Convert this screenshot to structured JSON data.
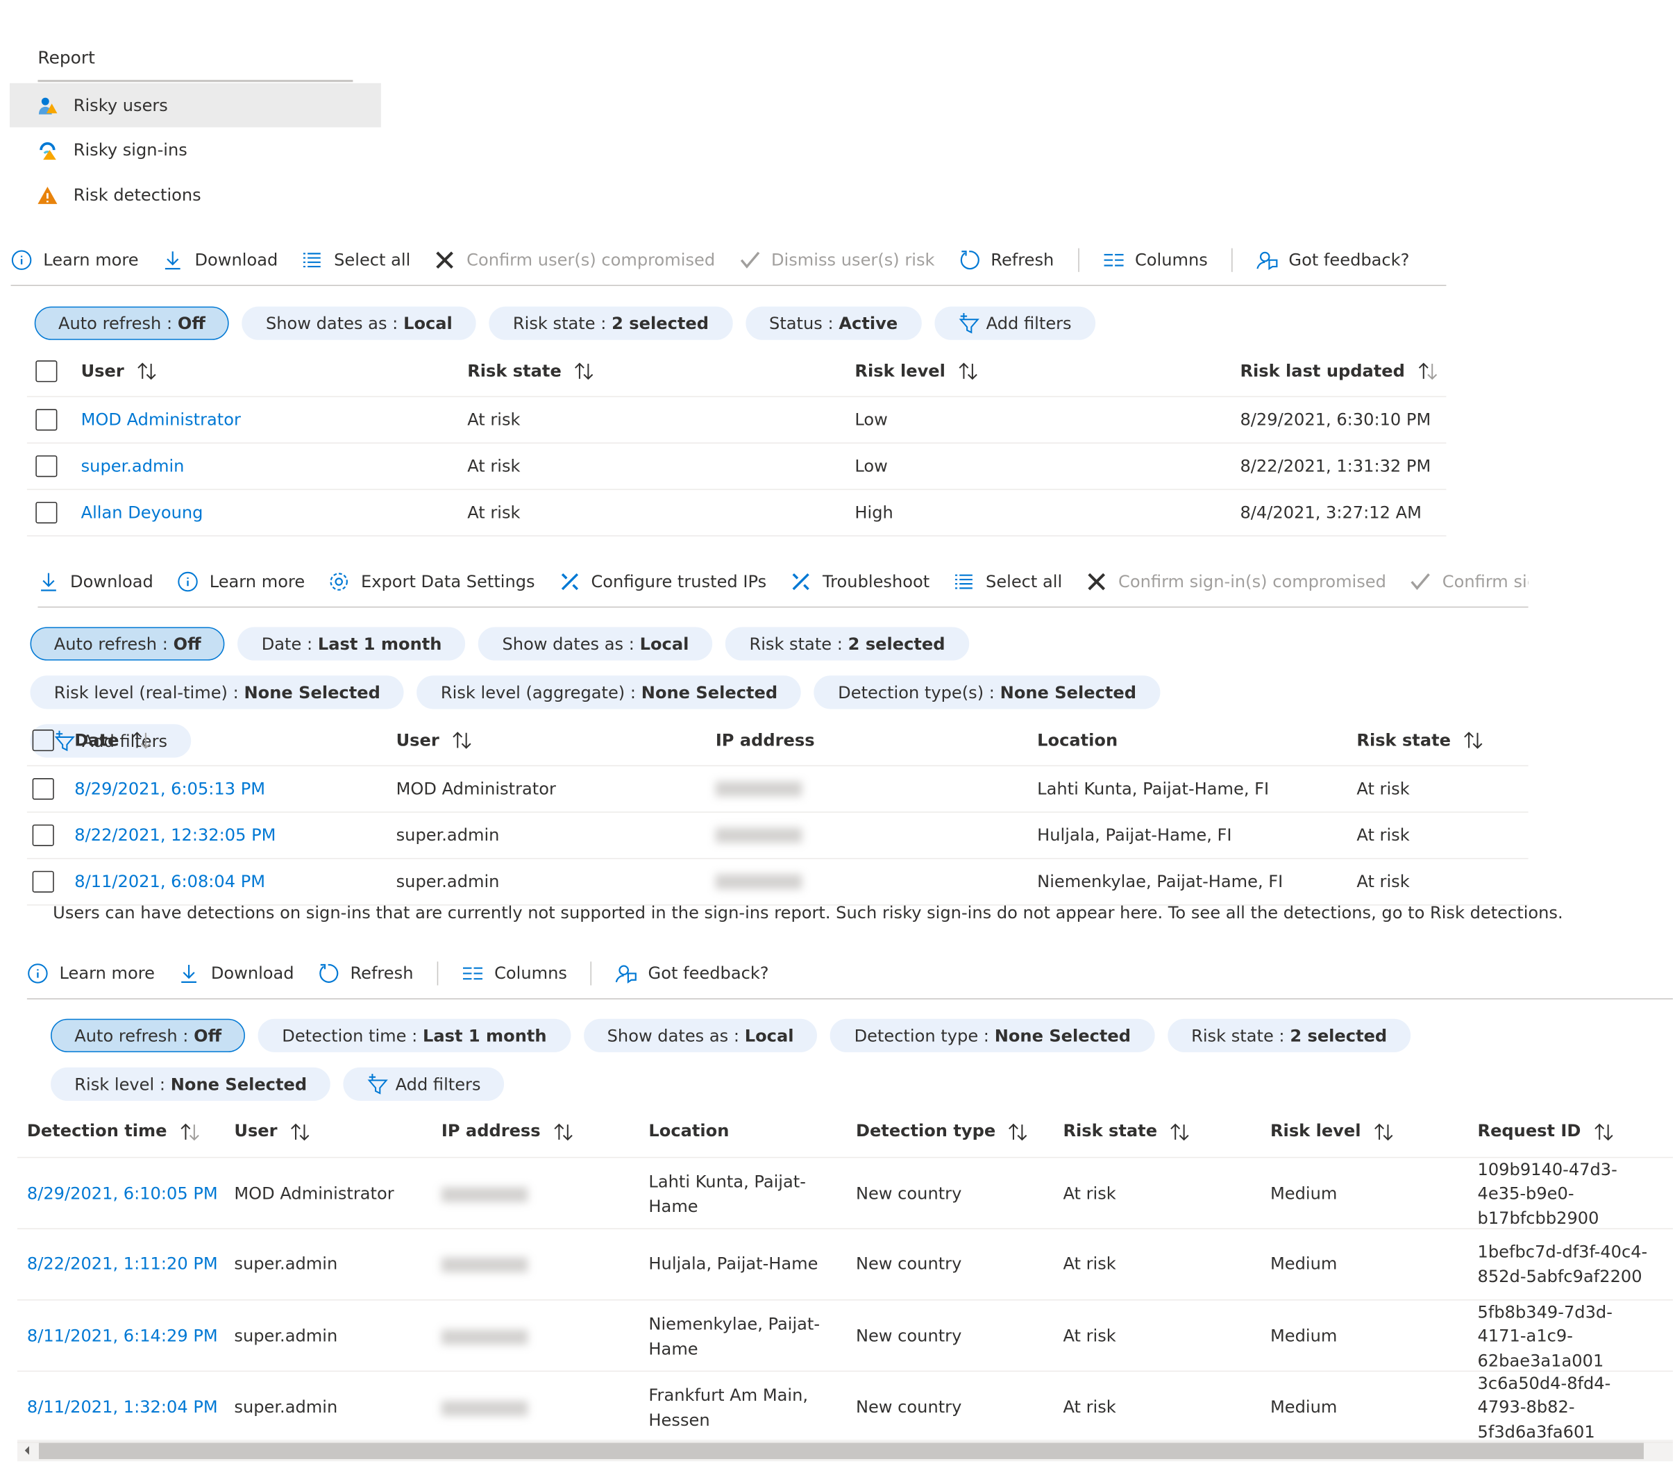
{
  "report": {
    "title": "Report",
    "items": [
      "Risky users",
      "Risky sign-ins",
      "Risk detections"
    ],
    "selected": 0
  },
  "users": {
    "toolbar": [
      {
        "label": "Learn more"
      },
      {
        "label": "Download"
      },
      {
        "label": "Select all"
      },
      {
        "label": "Confirm user(s) compromised",
        "disabled": true
      },
      {
        "label": "Dismiss user(s) risk",
        "disabled": true
      },
      {
        "label": "Refresh"
      },
      {
        "label": "Columns",
        "separator_before": true
      },
      {
        "label": "Got feedback?",
        "separator_before": true
      }
    ],
    "filters": [
      {
        "label": "Auto refresh :",
        "value": "Off",
        "active": true
      },
      {
        "label": "Show dates as :",
        "value": "Local"
      },
      {
        "label": "Risk state :",
        "value": "2 selected"
      },
      {
        "label": "Status :",
        "value": "Active"
      }
    ],
    "add_filters": "Add filters",
    "checkboxes": true,
    "columns": [
      {
        "label": "User",
        "sortable": true,
        "link": true
      },
      {
        "label": "Risk state",
        "sortable": true
      },
      {
        "label": "Risk level",
        "sortable": true
      },
      {
        "label": "Risk last updated",
        "sortable": true
      }
    ],
    "rows": [
      [
        "MOD Administrator",
        "At risk",
        "Low",
        "8/29/2021, 6:30:10 PM"
      ],
      [
        "super.admin",
        "At risk",
        "Low",
        "8/22/2021, 1:31:32 PM"
      ],
      [
        "Allan Deyoung",
        "At risk",
        "High",
        "8/4/2021, 3:27:12 AM"
      ]
    ]
  },
  "signins": {
    "toolbar": [
      {
        "label": "Download"
      },
      {
        "label": "Learn more"
      },
      {
        "label": "Export Data Settings"
      },
      {
        "label": "Configure trusted IPs"
      },
      {
        "label": "Troubleshoot"
      },
      {
        "label": "Select all"
      },
      {
        "label": "Confirm sign-in(s) compromised",
        "disabled": true
      },
      {
        "label": "Confirm sign-in",
        "disabled": true
      }
    ],
    "filters": [
      {
        "label": "Auto refresh :",
        "value": "Off",
        "active": true
      },
      {
        "label": "Date :",
        "value": "Last 1 month"
      },
      {
        "label": "Show dates as :",
        "value": "Local"
      },
      {
        "label": "Risk state :",
        "value": "2 selected"
      },
      {
        "label": "Risk level (real-time) :",
        "value": "None Selected"
      },
      {
        "label": "Risk level (aggregate) :",
        "value": "None Selected"
      },
      {
        "label": "Detection type(s) :",
        "value": "None Selected"
      }
    ],
    "add_filters": "Add filters",
    "checkboxes": true,
    "columns": [
      {
        "label": "Date",
        "sortable": true,
        "link": true
      },
      {
        "label": "User",
        "sortable": true
      },
      {
        "label": "IP address"
      },
      {
        "label": "Location"
      },
      {
        "label": "Risk state",
        "sortable": true
      }
    ],
    "rows": [
      [
        "8/29/2021, 6:05:13 PM",
        "MOD Administrator",
        null,
        "Lahti Kunta, Paijat-Hame, FI",
        "At risk"
      ],
      [
        "8/22/2021, 12:32:05 PM",
        "super.admin",
        null,
        "Huljala, Paijat-Hame, FI",
        "At risk"
      ],
      [
        "8/11/2021, 6:08:04 PM",
        "super.admin",
        null,
        "Niemenkylae, Paijat-Hame, FI",
        "At risk"
      ]
    ],
    "note": "Users can have detections on sign-ins that are currently not supported in the sign-ins report. Such risky sign-ins do not appear here. To see all the detections, go to Risk detections."
  },
  "detections": {
    "toolbar": [
      {
        "label": "Learn more"
      },
      {
        "label": "Download"
      },
      {
        "label": "Refresh"
      },
      {
        "label": "Columns",
        "separator_before": true
      },
      {
        "label": "Got feedback?",
        "separator_before": true
      }
    ],
    "filters": [
      {
        "label": "Auto refresh :",
        "value": "Off",
        "active": true
      },
      {
        "label": "Detection time :",
        "value": "Last 1 month"
      },
      {
        "label": "Show dates as :",
        "value": "Local"
      },
      {
        "label": "Detection type :",
        "value": "None Selected"
      },
      {
        "label": "Risk state :",
        "value": "2 selected"
      },
      {
        "label": "Risk level :",
        "value": "None Selected"
      }
    ],
    "add_filters": "Add filters",
    "checkboxes": false,
    "columns": [
      {
        "label": "Detection time",
        "sortable": true,
        "link": true
      },
      {
        "label": "User",
        "sortable": true
      },
      {
        "label": "IP address",
        "sortable": true
      },
      {
        "label": "Location"
      },
      {
        "label": "Detection type",
        "sortable": true
      },
      {
        "label": "Risk state",
        "sortable": true
      },
      {
        "label": "Risk level",
        "sortable": true
      },
      {
        "label": "Request ID",
        "sortable": true
      }
    ],
    "rows": [
      [
        "8/29/2021, 6:10:05 PM",
        "MOD Administrator",
        null,
        "Lahti Kunta, Paijat-Hame",
        "New country",
        "At risk",
        "Medium",
        "109b9140-47d3-4e35-b9e0-b17bfcbb2900"
      ],
      [
        "8/22/2021, 1:11:20 PM",
        "super.admin",
        null,
        "Huljala, Paijat-Hame",
        "New country",
        "At risk",
        "Medium",
        "1befbc7d-df3f-40c4-852d-5abfc9af2200"
      ],
      [
        "8/11/2021, 6:14:29 PM",
        "super.admin",
        null,
        "Niemenkylae, Paijat-Hame",
        "New country",
        "At risk",
        "Medium",
        "5fb8b349-7d3d-4171-a1c9-62bae3a1a001"
      ],
      [
        "8/11/2021, 1:32:04 PM",
        "super.admin",
        null,
        "Frankfurt Am Main, Hessen",
        "New country",
        "At risk",
        "Medium",
        "3c6a50d4-8fd4-4793-8b82-5f3d6a3fa601"
      ]
    ]
  }
}
